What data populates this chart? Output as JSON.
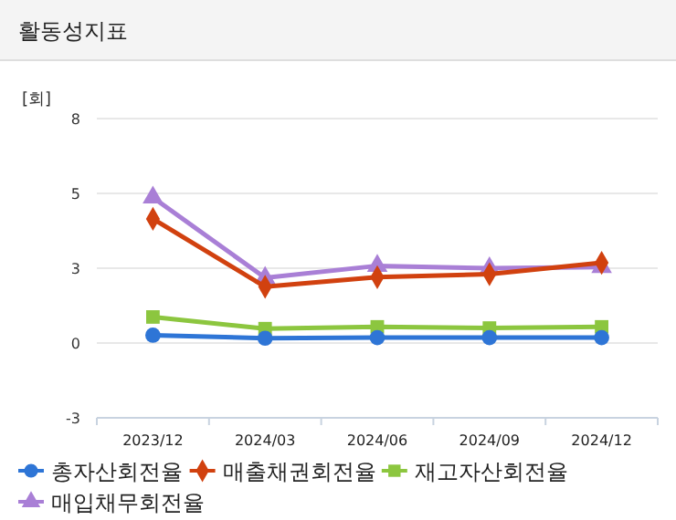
{
  "chart_data": {
    "type": "line",
    "title": "활동성지표",
    "ylabel": "[회]",
    "categories": [
      "2023/12",
      "2024/03",
      "2024/06",
      "2024/09",
      "2024/12"
    ],
    "series": [
      {
        "name": "총자산회전율",
        "color": "#2e75d6",
        "marker": "circle",
        "values": [
          0.26,
          0.16,
          0.18,
          0.18,
          0.18
        ]
      },
      {
        "name": "매출채권회전율",
        "color": "#d1410f",
        "marker": "diamond",
        "values": [
          4.15,
          1.88,
          2.2,
          2.3,
          2.68
        ]
      },
      {
        "name": "재고자산회전율",
        "color": "#8cc63f",
        "marker": "square",
        "values": [
          0.87,
          0.48,
          0.54,
          0.5,
          0.54
        ]
      },
      {
        "name": "매입채무회전율",
        "color": "#a97fd6",
        "marker": "triangle",
        "values": [
          4.86,
          2.18,
          2.58,
          2.5,
          2.54
        ]
      }
    ],
    "ylim": [
      -2.5,
      7.5
    ],
    "yticks": [
      {
        "value": -2.5,
        "label": "-3"
      },
      {
        "value": 0,
        "label": "0"
      },
      {
        "value": 2.5,
        "label": "3"
      },
      {
        "value": 5,
        "label": "5"
      },
      {
        "value": 7.5,
        "label": "8"
      }
    ],
    "grid": "y",
    "legend": "bottom"
  }
}
